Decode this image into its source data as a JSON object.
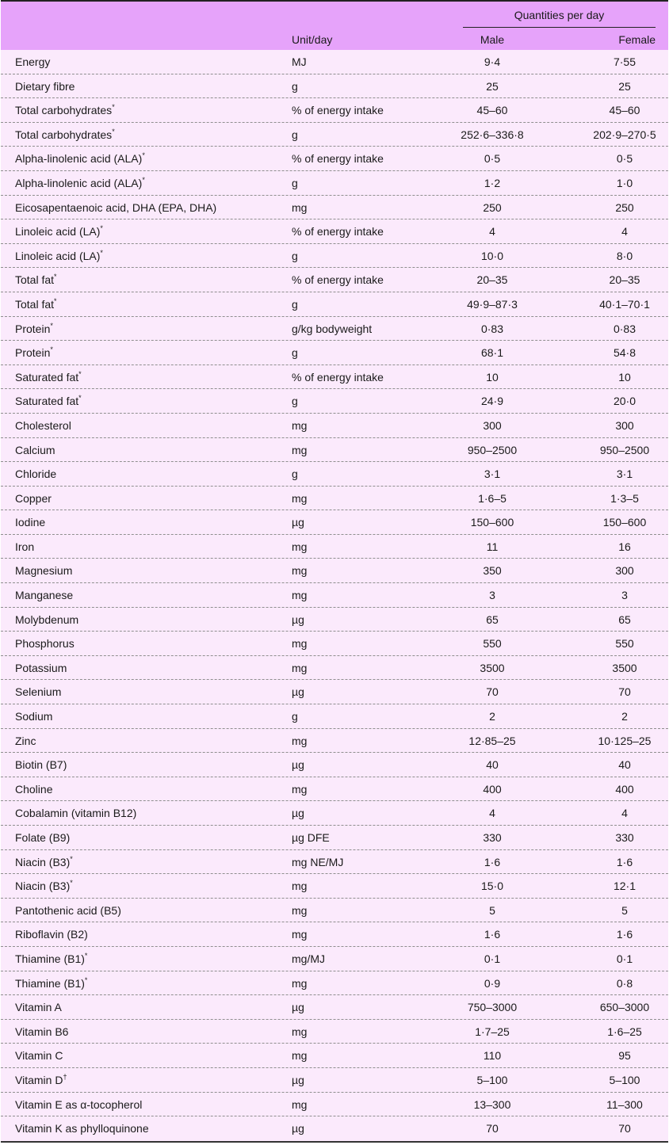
{
  "header": {
    "group_label": "Quantities per day",
    "unit_label": "Unit/day",
    "male_label": "Male",
    "female_label": "Female"
  },
  "rows": [
    {
      "name": "Energy",
      "mark": "",
      "unit": "MJ",
      "male": "9·4",
      "female": "7·55"
    },
    {
      "name": "Dietary fibre",
      "mark": "",
      "unit": "g",
      "male": "25",
      "female": "25"
    },
    {
      "name": "Total carbohydrates",
      "mark": "*",
      "unit": "% of energy intake",
      "male": "45–60",
      "female": "45–60"
    },
    {
      "name": "Total carbohydrates",
      "mark": "*",
      "unit": "g",
      "male": "252·6–336·8",
      "female": "202·9–270·5"
    },
    {
      "name": "Alpha-linolenic acid (ALA)",
      "mark": "*",
      "unit": "% of energy intake",
      "male": "0·5",
      "female": "0·5"
    },
    {
      "name": "Alpha-linolenic acid (ALA)",
      "mark": "*",
      "unit": "g",
      "male": "1·2",
      "female": "1·0"
    },
    {
      "name": "Eicosapentaenoic acid, DHA (EPA, DHA)",
      "mark": "",
      "unit": "mg",
      "male": "250",
      "female": "250"
    },
    {
      "name": "Linoleic acid (LA)",
      "mark": "*",
      "unit": "% of energy intake",
      "male": "4",
      "female": "4"
    },
    {
      "name": "Linoleic acid (LA)",
      "mark": "*",
      "unit": "g",
      "male": "10·0",
      "female": "8·0"
    },
    {
      "name": "Total fat",
      "mark": "*",
      "unit": "% of energy intake",
      "male": "20–35",
      "female": "20–35"
    },
    {
      "name": "Total fat",
      "mark": "*",
      "unit": "g",
      "male": "49·9–87·3",
      "female": "40·1–70·1"
    },
    {
      "name": "Protein",
      "mark": "*",
      "unit": "g/kg bodyweight",
      "male": "0·83",
      "female": "0·83"
    },
    {
      "name": "Protein",
      "mark": "*",
      "unit": "g",
      "male": "68·1",
      "female": "54·8"
    },
    {
      "name": "Saturated fat",
      "mark": "*",
      "unit": "% of energy intake",
      "male": "10",
      "female": "10"
    },
    {
      "name": "Saturated fat",
      "mark": "*",
      "unit": "g",
      "male": "24·9",
      "female": "20·0"
    },
    {
      "name": "Cholesterol",
      "mark": "",
      "unit": "mg",
      "male": "300",
      "female": "300"
    },
    {
      "name": "Calcium",
      "mark": "",
      "unit": "mg",
      "male": "950–2500",
      "female": "950–2500"
    },
    {
      "name": "Chloride",
      "mark": "",
      "unit": "g",
      "male": "3·1",
      "female": "3·1"
    },
    {
      "name": "Copper",
      "mark": "",
      "unit": "mg",
      "male": "1·6–5",
      "female": "1·3–5"
    },
    {
      "name": "Iodine",
      "mark": "",
      "unit": "µg",
      "male": "150–600",
      "female": "150–600"
    },
    {
      "name": "Iron",
      "mark": "",
      "unit": "mg",
      "male": "11",
      "female": "16"
    },
    {
      "name": "Magnesium",
      "mark": "",
      "unit": "mg",
      "male": "350",
      "female": "300"
    },
    {
      "name": "Manganese",
      "mark": "",
      "unit": "mg",
      "male": "3",
      "female": "3"
    },
    {
      "name": "Molybdenum",
      "mark": "",
      "unit": "µg",
      "male": "65",
      "female": "65"
    },
    {
      "name": "Phosphorus",
      "mark": "",
      "unit": "mg",
      "male": "550",
      "female": "550"
    },
    {
      "name": "Potassium",
      "mark": "",
      "unit": "mg",
      "male": "3500",
      "female": "3500"
    },
    {
      "name": "Selenium",
      "mark": "",
      "unit": "µg",
      "male": "70",
      "female": "70"
    },
    {
      "name": "Sodium",
      "mark": "",
      "unit": "g",
      "male": "2",
      "female": "2"
    },
    {
      "name": "Zinc",
      "mark": "",
      "unit": "mg",
      "male": "12·85–25",
      "female": "10·125–25"
    },
    {
      "name": "Biotin (B7)",
      "mark": "",
      "unit": "µg",
      "male": "40",
      "female": "40"
    },
    {
      "name": "Choline",
      "mark": "",
      "unit": "mg",
      "male": "400",
      "female": "400"
    },
    {
      "name": "Cobalamin (vitamin B12)",
      "mark": "",
      "unit": "µg",
      "male": "4",
      "female": "4"
    },
    {
      "name": "Folate (B9)",
      "mark": "",
      "unit": "µg DFE",
      "male": "330",
      "female": "330"
    },
    {
      "name": "Niacin (B3)",
      "mark": "*",
      "unit": "mg NE/MJ",
      "male": "1·6",
      "female": "1·6"
    },
    {
      "name": "Niacin (B3)",
      "mark": "*",
      "unit": "mg",
      "male": "15·0",
      "female": "12·1"
    },
    {
      "name": "Pantothenic acid (B5)",
      "mark": "",
      "unit": "mg",
      "male": "5",
      "female": "5"
    },
    {
      "name": "Riboflavin (B2)",
      "mark": "",
      "unit": "mg",
      "male": "1·6",
      "female": "1·6"
    },
    {
      "name": "Thiamine (B1)",
      "mark": "*",
      "unit": "mg/MJ",
      "male": "0·1",
      "female": "0·1"
    },
    {
      "name": "Thiamine (B1)",
      "mark": "*",
      "unit": "mg",
      "male": "0·9",
      "female": "0·8"
    },
    {
      "name": "Vitamin A",
      "mark": "",
      "unit": "µg",
      "male": "750–3000",
      "female": "650–3000"
    },
    {
      "name": "Vitamin B6",
      "mark": "",
      "unit": "mg",
      "male": "1·7–25",
      "female": "1·6–25"
    },
    {
      "name": "Vitamin C",
      "mark": "",
      "unit": "mg",
      "male": "110",
      "female": "95"
    },
    {
      "name": "Vitamin D",
      "mark": "†",
      "unit": "µg",
      "male": "5–100",
      "female": "5–100"
    },
    {
      "name": "Vitamin E as α-tocopherol",
      "mark": "",
      "unit": "mg",
      "male": "13–300",
      "female": "11–300"
    },
    {
      "name": "Vitamin K as phylloquinone",
      "mark": "",
      "unit": "µg",
      "male": "70",
      "female": "70"
    }
  ]
}
